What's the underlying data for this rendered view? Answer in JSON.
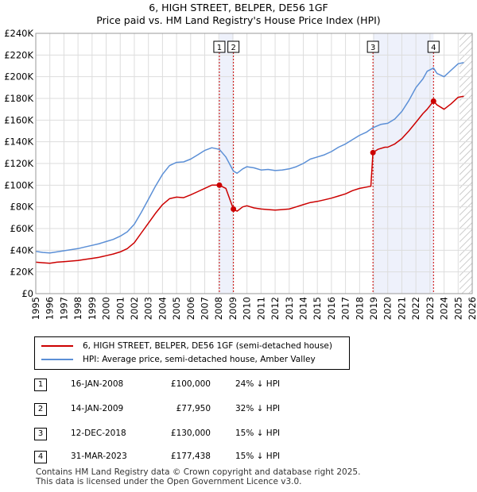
{
  "title_line1": "6, HIGH STREET, BELPER, DE56 1GF",
  "title_line2": "Price paid vs. HM Land Registry's House Price Index (HPI)",
  "chart_data": {
    "type": "line",
    "xlim": [
      1995,
      2026
    ],
    "ylim": [
      0,
      240000
    ],
    "x_ticks": [
      1995,
      1996,
      1997,
      1998,
      1999,
      2000,
      2001,
      2002,
      2003,
      2004,
      2005,
      2006,
      2007,
      2008,
      2009,
      2010,
      2011,
      2012,
      2013,
      2014,
      2015,
      2016,
      2017,
      2018,
      2019,
      2020,
      2021,
      2022,
      2023,
      2024,
      2025,
      2026
    ],
    "y_ticks": [
      {
        "value": 0,
        "label": "£0"
      },
      {
        "value": 20000,
        "label": "£20K"
      },
      {
        "value": 40000,
        "label": "£40K"
      },
      {
        "value": 60000,
        "label": "£60K"
      },
      {
        "value": 80000,
        "label": "£80K"
      },
      {
        "value": 100000,
        "label": "£100K"
      },
      {
        "value": 120000,
        "label": "£120K"
      },
      {
        "value": 140000,
        "label": "£140K"
      },
      {
        "value": 160000,
        "label": "£160K"
      },
      {
        "value": 180000,
        "label": "£180K"
      },
      {
        "value": 200000,
        "label": "£200K"
      },
      {
        "value": 220000,
        "label": "£220K"
      },
      {
        "value": 240000,
        "label": "£240K"
      }
    ],
    "grid": true,
    "shaded_periods": [
      [
        2008.04,
        2009.04
      ],
      [
        2018.95,
        2023.25
      ]
    ],
    "future_hatch_from": 2025.1,
    "series": [
      {
        "name": "6, HIGH STREET, BELPER, DE56 1GF (semi-detached house)",
        "color": "#cc0000",
        "points": [
          [
            1995.0,
            29000
          ],
          [
            1995.5,
            28500
          ],
          [
            1996.0,
            28000
          ],
          [
            1996.5,
            29000
          ],
          [
            1997.0,
            29500
          ],
          [
            1997.5,
            30000
          ],
          [
            1998.0,
            30500
          ],
          [
            1998.5,
            31500
          ],
          [
            1999.0,
            32500
          ],
          [
            1999.5,
            33500
          ],
          [
            2000.0,
            35000
          ],
          [
            2000.5,
            36500
          ],
          [
            2001.0,
            38500
          ],
          [
            2001.5,
            41500
          ],
          [
            2002.0,
            47000
          ],
          [
            2002.5,
            56000
          ],
          [
            2003.0,
            65000
          ],
          [
            2003.5,
            74000
          ],
          [
            2004.0,
            82000
          ],
          [
            2004.5,
            87500
          ],
          [
            2005.0,
            89000
          ],
          [
            2005.5,
            88500
          ],
          [
            2006.0,
            91000
          ],
          [
            2006.5,
            94000
          ],
          [
            2007.0,
            97000
          ],
          [
            2007.5,
            100000
          ],
          [
            2008.04,
            100000
          ],
          [
            2008.5,
            97000
          ],
          [
            2009.04,
            77950
          ],
          [
            2009.3,
            76000
          ],
          [
            2009.7,
            80000
          ],
          [
            2010.0,
            81000
          ],
          [
            2010.5,
            79000
          ],
          [
            2011.0,
            78000
          ],
          [
            2011.5,
            77500
          ],
          [
            2012.0,
            77000
          ],
          [
            2012.5,
            77500
          ],
          [
            2013.0,
            78000
          ],
          [
            2013.5,
            80000
          ],
          [
            2014.0,
            82000
          ],
          [
            2014.5,
            84000
          ],
          [
            2015.0,
            85000
          ],
          [
            2015.5,
            86500
          ],
          [
            2016.0,
            88000
          ],
          [
            2016.5,
            90000
          ],
          [
            2017.0,
            92000
          ],
          [
            2017.5,
            95000
          ],
          [
            2018.0,
            97000
          ],
          [
            2018.8,
            99000
          ],
          [
            2018.95,
            130000
          ],
          [
            2019.3,
            133000
          ],
          [
            2019.8,
            135000
          ],
          [
            2020.0,
            135000
          ],
          [
            2020.5,
            138000
          ],
          [
            2021.0,
            143000
          ],
          [
            2021.5,
            150000
          ],
          [
            2022.0,
            158000
          ],
          [
            2022.5,
            166000
          ],
          [
            2022.8,
            170000
          ],
          [
            2023.25,
            177438
          ],
          [
            2023.5,
            174000
          ],
          [
            2024.0,
            170000
          ],
          [
            2024.5,
            175000
          ],
          [
            2025.0,
            181000
          ],
          [
            2025.4,
            182000
          ]
        ]
      },
      {
        "name": "HPI: Average price, semi-detached house, Amber Valley",
        "color": "#5b8fd6",
        "points": [
          [
            1995.0,
            39000
          ],
          [
            1995.5,
            38000
          ],
          [
            1996.0,
            37500
          ],
          [
            1996.5,
            38500
          ],
          [
            1997.0,
            39500
          ],
          [
            1997.5,
            40500
          ],
          [
            1998.0,
            41500
          ],
          [
            1998.5,
            43000
          ],
          [
            1999.0,
            44500
          ],
          [
            1999.5,
            46000
          ],
          [
            2000.0,
            48000
          ],
          [
            2000.5,
            50000
          ],
          [
            2001.0,
            53000
          ],
          [
            2001.5,
            57000
          ],
          [
            2002.0,
            64000
          ],
          [
            2002.5,
            75000
          ],
          [
            2003.0,
            87000
          ],
          [
            2003.5,
            99000
          ],
          [
            2004.0,
            110000
          ],
          [
            2004.5,
            118000
          ],
          [
            2005.0,
            121000
          ],
          [
            2005.5,
            121500
          ],
          [
            2006.0,
            124000
          ],
          [
            2006.5,
            128000
          ],
          [
            2007.0,
            132000
          ],
          [
            2007.5,
            134500
          ],
          [
            2008.04,
            133000
          ],
          [
            2008.5,
            126000
          ],
          [
            2009.04,
            113000
          ],
          [
            2009.3,
            111000
          ],
          [
            2009.7,
            115000
          ],
          [
            2010.0,
            117000
          ],
          [
            2010.5,
            116000
          ],
          [
            2011.0,
            114000
          ],
          [
            2011.5,
            114500
          ],
          [
            2012.0,
            113500
          ],
          [
            2012.5,
            114000
          ],
          [
            2013.0,
            115000
          ],
          [
            2013.5,
            117000
          ],
          [
            2014.0,
            120000
          ],
          [
            2014.5,
            124000
          ],
          [
            2015.0,
            126000
          ],
          [
            2015.5,
            128000
          ],
          [
            2016.0,
            131000
          ],
          [
            2016.5,
            135000
          ],
          [
            2017.0,
            138000
          ],
          [
            2017.5,
            142000
          ],
          [
            2018.0,
            146000
          ],
          [
            2018.5,
            149000
          ],
          [
            2018.95,
            153000
          ],
          [
            2019.5,
            156000
          ],
          [
            2020.0,
            157000
          ],
          [
            2020.5,
            161000
          ],
          [
            2021.0,
            168000
          ],
          [
            2021.5,
            178000
          ],
          [
            2022.0,
            190000
          ],
          [
            2022.5,
            198000
          ],
          [
            2022.8,
            205000
          ],
          [
            2023.25,
            208000
          ],
          [
            2023.5,
            203000
          ],
          [
            2024.0,
            200000
          ],
          [
            2024.5,
            206000
          ],
          [
            2025.0,
            212000
          ],
          [
            2025.4,
            213000
          ]
        ]
      }
    ],
    "markers": [
      {
        "label": "1",
        "x": 2008.04,
        "y": 100000
      },
      {
        "label": "2",
        "x": 2009.04,
        "y": 77950
      },
      {
        "label": "3",
        "x": 2018.95,
        "y": 130000
      },
      {
        "label": "4",
        "x": 2023.25,
        "y": 177438
      }
    ]
  },
  "legend": [
    {
      "label": "6, HIGH STREET, BELPER, DE56 1GF (semi-detached house)",
      "color": "#cc0000"
    },
    {
      "label": "HPI: Average price, semi-detached house, Amber Valley",
      "color": "#5b8fd6"
    }
  ],
  "transactions": [
    {
      "num": "1",
      "date": "16-JAN-2008",
      "price": "£100,000",
      "hpi": "24% ↓ HPI"
    },
    {
      "num": "2",
      "date": "14-JAN-2009",
      "price": "£77,950",
      "hpi": "32% ↓ HPI"
    },
    {
      "num": "3",
      "date": "12-DEC-2018",
      "price": "£130,000",
      "hpi": "15% ↓ HPI"
    },
    {
      "num": "4",
      "date": "31-MAR-2023",
      "price": "£177,438",
      "hpi": "15% ↓ HPI"
    }
  ],
  "footer_line1": "Contains HM Land Registry data © Crown copyright and database right 2025.",
  "footer_line2": "This data is licensed under the Open Government Licence v3.0."
}
